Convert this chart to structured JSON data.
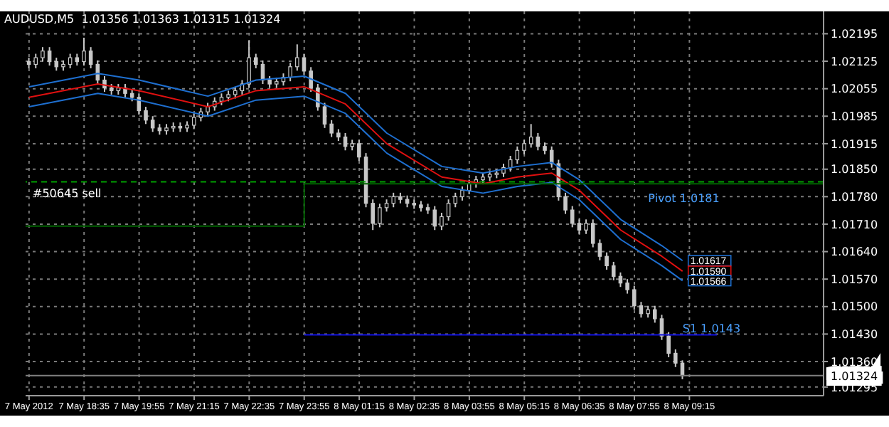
{
  "chart_data": {
    "type": "candlestick",
    "title": "AUDUSD,M5  1.01356 1.01363 1.01315 1.01324",
    "color": "#c8c8c8",
    "x": [
      "2012-05-07T17:15",
      "2012-05-07T17:25",
      "2012-05-07T17:35",
      "2012-05-07T17:45",
      "2012-05-07T17:55",
      "2012-05-07T18:05",
      "2012-05-07T18:15",
      "2012-05-07T18:25",
      "2012-05-07T18:35",
      "2012-05-07T18:45",
      "2012-05-07T18:55",
      "2012-05-07T19:05",
      "2012-05-07T19:15",
      "2012-05-07T19:25",
      "2012-05-07T19:35",
      "2012-05-07T19:45",
      "2012-05-07T19:55",
      "2012-05-07T20:05",
      "2012-05-07T20:15",
      "2012-05-07T20:25",
      "2012-05-07T20:35",
      "2012-05-07T20:45",
      "2012-05-07T20:55",
      "2012-05-07T21:05",
      "2012-05-07T21:15",
      "2012-05-07T21:25",
      "2012-05-07T21:35",
      "2012-05-07T21:45",
      "2012-05-07T21:55",
      "2012-05-07T22:05",
      "2012-05-07T22:15",
      "2012-05-07T22:25",
      "2012-05-07T22:35",
      "2012-05-07T22:45",
      "2012-05-07T22:55",
      "2012-05-07T23:05",
      "2012-05-07T23:15",
      "2012-05-07T23:25",
      "2012-05-07T23:35",
      "2012-05-07T23:45",
      "2012-05-07T23:55",
      "2012-05-08T00:05",
      "2012-05-08T00:15",
      "2012-05-08T00:25",
      "2012-05-08T00:35",
      "2012-05-08T00:45",
      "2012-05-08T00:55",
      "2012-05-08T01:05",
      "2012-05-08T01:15",
      "2012-05-08T01:25",
      "2012-05-08T01:35",
      "2012-05-08T01:45",
      "2012-05-08T01:55",
      "2012-05-08T02:05",
      "2012-05-08T02:15",
      "2012-05-08T02:25",
      "2012-05-08T02:35",
      "2012-05-08T02:45",
      "2012-05-08T02:55",
      "2012-05-08T03:05",
      "2012-05-08T03:15",
      "2012-05-08T03:25",
      "2012-05-08T03:35",
      "2012-05-08T03:45",
      "2012-05-08T03:55",
      "2012-05-08T04:05",
      "2012-05-08T04:15",
      "2012-05-08T04:25",
      "2012-05-08T04:35",
      "2012-05-08T04:45",
      "2012-05-08T04:55",
      "2012-05-08T05:05",
      "2012-05-08T05:15",
      "2012-05-08T05:25",
      "2012-05-08T05:35",
      "2012-05-08T05:45",
      "2012-05-08T05:55",
      "2012-05-08T06:05",
      "2012-05-08T06:15",
      "2012-05-08T06:25",
      "2012-05-08T06:35",
      "2012-05-08T06:45",
      "2012-05-08T06:55",
      "2012-05-08T07:05",
      "2012-05-08T07:15",
      "2012-05-08T07:25",
      "2012-05-08T07:35",
      "2012-05-08T07:45",
      "2012-05-08T07:55",
      "2012-05-08T08:05",
      "2012-05-08T08:15",
      "2012-05-08T08:25",
      "2012-05-08T08:35",
      "2012-05-08T08:45",
      "2012-05-08T08:55",
      "2012-05-08T09:05"
    ],
    "ohlc": [
      [
        1.02124,
        1.02134,
        1.02107,
        1.02117
      ],
      [
        1.02117,
        1.02144,
        1.02107,
        1.02134
      ],
      [
        1.02134,
        1.02161,
        1.02124,
        1.02151
      ],
      [
        1.02151,
        1.02161,
        1.02114,
        1.02124
      ],
      [
        1.02124,
        1.02134,
        1.02101,
        1.02111
      ],
      [
        1.02111,
        1.02127,
        1.02101,
        1.02117
      ],
      [
        1.02117,
        1.02144,
        1.02107,
        1.02134
      ],
      [
        1.02134,
        1.02144,
        1.02114,
        1.02124
      ],
      [
        1.02124,
        1.02185,
        1.02114,
        1.02151
      ],
      [
        1.02151,
        1.02161,
        1.02107,
        1.02117
      ],
      [
        1.02117,
        1.02127,
        1.02067,
        1.02077
      ],
      [
        1.02077,
        1.02087,
        1.02047,
        1.02057
      ],
      [
        1.02057,
        1.02067,
        1.0204,
        1.0205
      ],
      [
        1.0205,
        1.02067,
        1.0204,
        1.02057
      ],
      [
        1.02057,
        1.02067,
        1.02033,
        1.02043
      ],
      [
        1.02043,
        1.02053,
        1.02023,
        1.02033
      ],
      [
        1.02033,
        1.02043,
        1.01989,
        1.01999
      ],
      [
        1.01999,
        1.02009,
        1.01965,
        1.01975
      ],
      [
        1.01975,
        1.01985,
        1.01945,
        1.01955
      ],
      [
        1.01955,
        1.01965,
        1.01938,
        1.01948
      ],
      [
        1.01948,
        1.01965,
        1.01938,
        1.01955
      ],
      [
        1.01955,
        1.01969,
        1.01945,
        1.01959
      ],
      [
        1.01959,
        1.01969,
        1.01945,
        1.01955
      ],
      [
        1.01955,
        1.01972,
        1.01945,
        1.01962
      ],
      [
        1.01962,
        1.01992,
        1.01952,
        1.01982
      ],
      [
        1.01982,
        1.02006,
        1.01972,
        1.01996
      ],
      [
        1.01996,
        1.02019,
        1.01986,
        1.02009
      ],
      [
        1.02009,
        1.02033,
        1.01999,
        1.02023
      ],
      [
        1.02023,
        1.02043,
        1.02013,
        1.02033
      ],
      [
        1.02033,
        1.0205,
        1.02023,
        1.0204
      ],
      [
        1.0204,
        1.0206,
        1.0203,
        1.0205
      ],
      [
        1.0205,
        1.02077,
        1.0204,
        1.02067
      ],
      [
        1.02067,
        1.02178,
        1.02057,
        1.02134
      ],
      [
        1.02134,
        1.02144,
        1.02107,
        1.02117
      ],
      [
        1.02117,
        1.02127,
        1.02067,
        1.02077
      ],
      [
        1.02077,
        1.02087,
        1.02057,
        1.02067
      ],
      [
        1.02067,
        1.02083,
        1.02057,
        1.02073
      ],
      [
        1.02073,
        1.02094,
        1.02063,
        1.02084
      ],
      [
        1.02084,
        1.02121,
        1.02074,
        1.02111
      ],
      [
        1.02111,
        1.02168,
        1.02101,
        1.02134
      ],
      [
        1.02134,
        1.02144,
        1.0209,
        1.021
      ],
      [
        1.021,
        1.0211,
        1.02047,
        1.02057
      ],
      [
        1.02057,
        1.02067,
        1.01999,
        1.02009
      ],
      [
        1.02009,
        1.02019,
        1.01955,
        1.01965
      ],
      [
        1.01965,
        1.01975,
        1.01932,
        1.01942
      ],
      [
        1.01942,
        1.01952,
        1.01922,
        1.01932
      ],
      [
        1.01932,
        1.01942,
        1.01898,
        1.01908
      ],
      [
        1.01908,
        1.01925,
        1.01898,
        1.01915
      ],
      [
        1.01915,
        1.01925,
        1.01871,
        1.01881
      ],
      [
        1.01881,
        1.01891,
        1.01753,
        1.01763
      ],
      [
        1.01763,
        1.01773,
        1.01695,
        1.01712
      ],
      [
        1.01712,
        1.01762,
        1.01702,
        1.01752
      ],
      [
        1.01752,
        1.01773,
        1.01742,
        1.01763
      ],
      [
        1.01763,
        1.0179,
        1.01753,
        1.0178
      ],
      [
        1.0178,
        1.0179,
        1.01763,
        1.01773
      ],
      [
        1.01773,
        1.01783,
        1.01753,
        1.01763
      ],
      [
        1.01763,
        1.01773,
        1.01749,
        1.01759
      ],
      [
        1.01759,
        1.01769,
        1.01742,
        1.01752
      ],
      [
        1.01752,
        1.01762,
        1.01736,
        1.01746
      ],
      [
        1.01746,
        1.01756,
        1.01695,
        1.01705
      ],
      [
        1.01705,
        1.01739,
        1.01695,
        1.01729
      ],
      [
        1.01729,
        1.01773,
        1.01719,
        1.01763
      ],
      [
        1.01763,
        1.0179,
        1.01753,
        1.0178
      ],
      [
        1.0178,
        1.01806,
        1.0177,
        1.01796
      ],
      [
        1.01796,
        1.01823,
        1.01786,
        1.01813
      ],
      [
        1.01813,
        1.01833,
        1.01803,
        1.01823
      ],
      [
        1.01823,
        1.0184,
        1.01813,
        1.0183
      ],
      [
        1.0183,
        1.01847,
        1.0182,
        1.01837
      ],
      [
        1.01837,
        1.0185,
        1.01827,
        1.0184
      ],
      [
        1.0184,
        1.01864,
        1.0183,
        1.01854
      ],
      [
        1.01854,
        1.01884,
        1.01844,
        1.01874
      ],
      [
        1.01874,
        1.01908,
        1.01864,
        1.01898
      ],
      [
        1.01898,
        1.01925,
        1.01888,
        1.01915
      ],
      [
        1.01915,
        1.01965,
        1.01905,
        1.01932
      ],
      [
        1.01932,
        1.01942,
        1.01898,
        1.01908
      ],
      [
        1.01908,
        1.01918,
        1.01888,
        1.01898
      ],
      [
        1.01898,
        1.01908,
        1.01854,
        1.01864
      ],
      [
        1.01864,
        1.01874,
        1.0177,
        1.0178
      ],
      [
        1.0178,
        1.0179,
        1.01736,
        1.01746
      ],
      [
        1.01746,
        1.01756,
        1.01702,
        1.01712
      ],
      [
        1.01712,
        1.01722,
        1.01685,
        1.01695
      ],
      [
        1.01695,
        1.01722,
        1.01685,
        1.01712
      ],
      [
        1.01712,
        1.01722,
        1.01651,
        1.01661
      ],
      [
        1.01661,
        1.01671,
        1.01618,
        1.01628
      ],
      [
        1.01628,
        1.01638,
        1.01594,
        1.01604
      ],
      [
        1.01604,
        1.01614,
        1.01567,
        1.01577
      ],
      [
        1.01577,
        1.01587,
        1.0155,
        1.0156
      ],
      [
        1.0156,
        1.0157,
        1.01533,
        1.01543
      ],
      [
        1.01543,
        1.01553,
        1.01492,
        1.01502
      ],
      [
        1.01502,
        1.01512,
        1.01472,
        1.01482
      ],
      [
        1.01482,
        1.01502,
        1.01472,
        1.01492
      ],
      [
        1.01492,
        1.01502,
        1.01459,
        1.01469
      ],
      [
        1.01469,
        1.01479,
        1.01415,
        1.01425
      ],
      [
        1.01425,
        1.01435,
        1.01371,
        1.01381
      ],
      [
        1.01381,
        1.01391,
        1.01346,
        1.01356
      ],
      [
        1.01356,
        1.01363,
        1.01315,
        1.01324
      ]
    ],
    "series": [
      {
        "type": "line",
        "color": "#1e6fd0",
        "x": [
          "2012-05-07T17:15",
          "2012-05-07T18:55",
          "2012-05-07T19:55",
          "2012-05-07T21:35",
          "2012-05-07T22:45",
          "2012-05-07T23:55",
          "2012-05-08T00:55",
          "2012-05-08T01:55",
          "2012-05-08T03:15",
          "2012-05-08T04:15",
          "2012-05-08T05:05",
          "2012-05-08T05:55",
          "2012-05-08T06:35",
          "2012-05-08T07:35",
          "2012-05-08T08:35",
          "2012-05-08T09:05"
        ],
        "values": [
          1.0206,
          1.02094,
          1.02077,
          1.02036,
          1.02077,
          1.02087,
          1.02043,
          1.01942,
          1.01857,
          1.0184,
          1.01857,
          1.01867,
          1.01823,
          1.01722,
          1.01655,
          1.01617
        ],
        "value_labels": [
          null,
          null,
          null,
          null,
          null,
          null,
          null,
          null,
          null,
          null,
          null,
          null,
          null,
          null,
          null,
          "1.01617"
        ]
      },
      {
        "type": "line",
        "color": "#e01010",
        "x": [
          "2012-05-07T17:15",
          "2012-05-07T18:55",
          "2012-05-07T19:55",
          "2012-05-07T21:35",
          "2012-05-07T22:45",
          "2012-05-07T23:55",
          "2012-05-08T00:55",
          "2012-05-08T01:55",
          "2012-05-08T03:15",
          "2012-05-08T04:15",
          "2012-05-08T05:05",
          "2012-05-08T05:55",
          "2012-05-08T06:35",
          "2012-05-08T07:35",
          "2012-05-08T08:35",
          "2012-05-08T09:05"
        ],
        "values": [
          1.02033,
          1.02067,
          1.0205,
          1.02009,
          1.0205,
          1.0206,
          1.02016,
          1.01915,
          1.0183,
          1.01813,
          1.0183,
          1.0184,
          1.01796,
          1.01695,
          1.01628,
          1.0159
        ],
        "value_labels": [
          null,
          null,
          null,
          null,
          null,
          null,
          null,
          null,
          null,
          null,
          null,
          null,
          null,
          null,
          null,
          "1.01590"
        ]
      },
      {
        "type": "line",
        "color": "#1e6fd0",
        "x": [
          "2012-05-07T17:15",
          "2012-05-07T18:55",
          "2012-05-07T19:55",
          "2012-05-07T21:35",
          "2012-05-07T22:45",
          "2012-05-07T23:55",
          "2012-05-08T00:55",
          "2012-05-08T01:55",
          "2012-05-08T03:15",
          "2012-05-08T04:15",
          "2012-05-08T05:05",
          "2012-05-08T05:55",
          "2012-05-08T06:35",
          "2012-05-08T07:35",
          "2012-05-08T08:35",
          "2012-05-08T09:05"
        ],
        "values": [
          1.02009,
          1.02043,
          1.02026,
          1.01985,
          1.02026,
          1.02036,
          1.01992,
          1.01891,
          1.01806,
          1.01789,
          1.01806,
          1.01816,
          1.01772,
          1.01671,
          1.01604,
          1.01566
        ],
        "value_labels": [
          null,
          null,
          null,
          null,
          null,
          null,
          null,
          null,
          null,
          null,
          null,
          null,
          null,
          null,
          null,
          "1.01566"
        ]
      },
      {
        "type": "line",
        "color": "#006400",
        "x": [
          "2012-05-07T17:10",
          "2012-05-07T23:55",
          "2012-05-07T23:55",
          "2012-05-08T12:30"
        ],
        "values": [
          1.01705,
          1.01705,
          1.01813,
          1.01813
        ]
      },
      {
        "type": "line",
        "color": "#1010e0",
        "x": [
          "2012-05-07T23:55",
          "2012-05-08T09:55"
        ],
        "values": [
          1.01428,
          1.01428
        ]
      }
    ],
    "ref_lines": [
      {
        "axis": "y",
        "value": 1.01818,
        "label": "#50645 sell",
        "color": "#00a000",
        "line_style": "dashed"
      },
      {
        "axis": "y",
        "value": 1.01324,
        "label": "1.01324",
        "color": "#808080",
        "line_style": "solid"
      }
    ],
    "annotations": [
      {
        "text": "Pivot 1.0181",
        "x": "2012-05-08T08:15",
        "y": 1.01796
      },
      {
        "text": "S1 1.0143",
        "x": "2012-05-08T09:05",
        "y": 1.01428
      }
    ],
    "xlim": [
      "2012-05-07T17:10",
      "2012-05-08T12:30"
    ],
    "xticks": [
      {
        "value": "2012-05-07T17:15",
        "label": "7 May 2012"
      },
      {
        "value": "2012-05-07T18:35",
        "label": "7 May 18:35"
      },
      {
        "value": "2012-05-07T19:55",
        "label": "7 May 19:55"
      },
      {
        "value": "2012-05-07T21:15",
        "label": "7 May 21:15"
      },
      {
        "value": "2012-05-07T22:35",
        "label": "7 May 22:35"
      },
      {
        "value": "2012-05-07T23:55",
        "label": "7 May 23:55"
      },
      {
        "value": "2012-05-08T01:15",
        "label": "8 May 01:15"
      },
      {
        "value": "2012-05-08T02:35",
        "label": "8 May 02:35"
      },
      {
        "value": "2012-05-08T03:55",
        "label": "8 May 03:55"
      },
      {
        "value": "2012-05-08T05:15",
        "label": "8 May 05:15"
      },
      {
        "value": "2012-05-08T06:35",
        "label": "8 May 06:35"
      },
      {
        "value": "2012-05-08T07:55",
        "label": "8 May 07:55"
      },
      {
        "value": "2012-05-08T09:15",
        "label": "8 May 09:15"
      }
    ],
    "ylim": [
      1.01273,
      1.02252
    ],
    "yticks": [
      {
        "value": 1.01295,
        "label": "1.01295"
      },
      {
        "value": 1.0136,
        "label": "1.01360"
      },
      {
        "value": 1.0143,
        "label": "1.01430"
      },
      {
        "value": 1.015,
        "label": "1.01500"
      },
      {
        "value": 1.0157,
        "label": "1.01570"
      },
      {
        "value": 1.0164,
        "label": "1.01640"
      },
      {
        "value": 1.0171,
        "label": "1.01710"
      },
      {
        "value": 1.0178,
        "label": "1.01780"
      },
      {
        "value": 1.0185,
        "label": "1.01850"
      },
      {
        "value": 1.01915,
        "label": "1.01915"
      },
      {
        "value": 1.01985,
        "label": "1.01985"
      },
      {
        "value": 1.02055,
        "label": "1.02055"
      },
      {
        "value": 1.02125,
        "label": "1.02125"
      },
      {
        "value": 1.02195,
        "label": "1.02195"
      }
    ],
    "grid": true
  }
}
